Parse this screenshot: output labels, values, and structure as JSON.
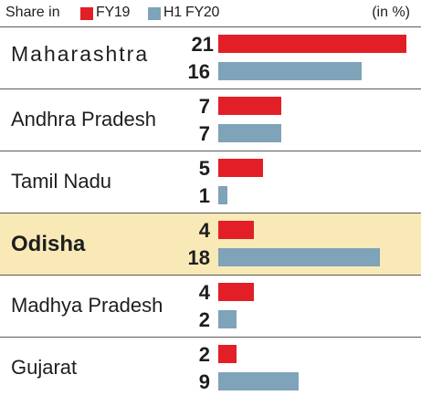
{
  "legend": {
    "prefix": "Share in",
    "series": [
      {
        "label": "FY19",
        "color": "#e21f26"
      },
      {
        "label": "H1 FY20",
        "color": "#7fa3b8"
      }
    ],
    "unit": "(in %)"
  },
  "chart_data": {
    "type": "bar",
    "orientation": "horizontal",
    "categories": [
      "Maharashtra",
      "Andhra Pradesh",
      "Tamil Nadu",
      "Odisha",
      "Madhya Pradesh",
      "Gujarat"
    ],
    "series": [
      {
        "name": "FY19",
        "values": [
          21,
          7,
          5,
          4,
          4,
          2
        ],
        "color": "#e21f26"
      },
      {
        "name": "H1 FY20",
        "values": [
          16,
          7,
          1,
          18,
          2,
          9
        ],
        "color": "#7fa3b8"
      }
    ],
    "highlight": "Odisha",
    "xlim": [
      0,
      21
    ],
    "grid": false
  }
}
